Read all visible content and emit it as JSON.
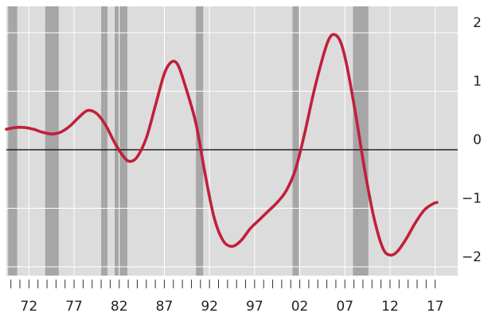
{
  "chart_data": {
    "type": "line",
    "title": "",
    "xlabel": "",
    "ylabel": "",
    "xlim": [
      1969.5,
      2019.5
    ],
    "ylim": [
      -2.15,
      2.45
    ],
    "y_ticks": [
      -2,
      -1,
      0,
      1,
      2
    ],
    "y_tick_labels": [
      "−2",
      "−1",
      "0",
      "1",
      "2"
    ],
    "x_ticks": [
      1972,
      1977,
      1982,
      1987,
      1992,
      1997,
      2002,
      2007,
      2012,
      2017
    ],
    "x_tick_labels": [
      "72",
      "77",
      "82",
      "87",
      "92",
      "97",
      "02",
      "07",
      "12",
      "17"
    ],
    "zero_line": 0,
    "grid": true,
    "y_axis_position": "right",
    "recession_bands": [
      [
        1969.7,
        1970.7
      ],
      [
        1973.8,
        1975.3
      ],
      [
        1980.0,
        1980.7
      ],
      [
        1981.5,
        1982.9
      ],
      [
        1990.5,
        1991.3
      ],
      [
        2001.2,
        2001.9
      ],
      [
        2007.9,
        2009.6
      ]
    ],
    "series": [
      {
        "points": [
          [
            1969.5,
            0.35
          ],
          [
            1970.5,
            0.38
          ],
          [
            1971.5,
            0.38
          ],
          [
            1972.5,
            0.35
          ],
          [
            1973.5,
            0.3
          ],
          [
            1974.5,
            0.27
          ],
          [
            1975.5,
            0.3
          ],
          [
            1976.5,
            0.4
          ],
          [
            1977.5,
            0.55
          ],
          [
            1978.5,
            0.67
          ],
          [
            1979.5,
            0.62
          ],
          [
            1980.5,
            0.42
          ],
          [
            1981.5,
            0.12
          ],
          [
            1982.5,
            -0.12
          ],
          [
            1983.2,
            -0.2
          ],
          [
            1984.0,
            -0.12
          ],
          [
            1985.0,
            0.2
          ],
          [
            1986.0,
            0.75
          ],
          [
            1987.0,
            1.3
          ],
          [
            1987.8,
            1.5
          ],
          [
            1988.5,
            1.45
          ],
          [
            1989.3,
            1.1
          ],
          [
            1990.5,
            0.45
          ],
          [
            1991.5,
            -0.4
          ],
          [
            1992.5,
            -1.15
          ],
          [
            1993.5,
            -1.55
          ],
          [
            1994.5,
            -1.65
          ],
          [
            1995.5,
            -1.55
          ],
          [
            1996.5,
            -1.35
          ],
          [
            1997.5,
            -1.2
          ],
          [
            1998.5,
            -1.05
          ],
          [
            1999.5,
            -0.9
          ],
          [
            2000.5,
            -0.7
          ],
          [
            2001.5,
            -0.35
          ],
          [
            2002.5,
            0.25
          ],
          [
            2003.5,
            0.95
          ],
          [
            2004.5,
            1.55
          ],
          [
            2005.2,
            1.88
          ],
          [
            2005.8,
            1.97
          ],
          [
            2006.5,
            1.85
          ],
          [
            2007.2,
            1.45
          ],
          [
            2008.2,
            0.6
          ],
          [
            2009.2,
            -0.35
          ],
          [
            2010.2,
            -1.15
          ],
          [
            2011.2,
            -1.68
          ],
          [
            2012.0,
            -1.8
          ],
          [
            2012.8,
            -1.74
          ],
          [
            2013.8,
            -1.52
          ],
          [
            2014.8,
            -1.25
          ],
          [
            2015.8,
            -1.03
          ],
          [
            2016.8,
            -0.92
          ],
          [
            2017.2,
            -0.9
          ]
        ],
        "color": "#c0203a"
      }
    ]
  },
  "colors": {
    "plot_background": "#dcdcdc",
    "recession_band": "#a6a6a6",
    "grid": "#ffffff",
    "zero_line": "#000000",
    "line": "#c0203a",
    "text": "#222222"
  }
}
